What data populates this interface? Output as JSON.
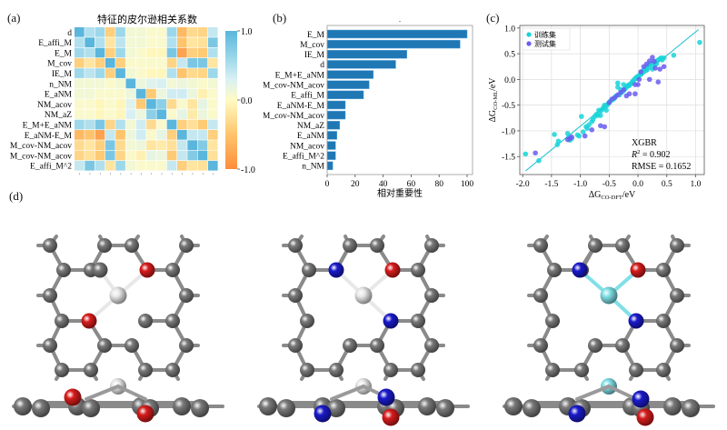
{
  "panels": {
    "a": "(a)",
    "b": "(b)",
    "c": "(c)",
    "d": "(d)"
  },
  "chart_data": [
    {
      "type": "heatmap",
      "title": "特征的皮尔逊相关系数",
      "row_labels": [
        "d",
        "E_affi_M",
        "E_M",
        "M_cov",
        "IE_M",
        "n_NM",
        "E_aNM",
        "NM_acov",
        "NM_aZ",
        "E_M+E_aNM",
        "E_aNM-E_M",
        "M_cov-NM_acov",
        "M_cov-NM_acov",
        "E_affi_M^2"
      ],
      "colorbar": {
        "min": -1.0,
        "max": 1.0,
        "ticks": [
          "1.0",
          "0.0",
          "-1.0"
        ]
      },
      "matrix": [
        [
          1.0,
          0.5,
          0.6,
          -0.4,
          0.6,
          0.1,
          0.1,
          0.05,
          0.05,
          0.6,
          -0.6,
          -0.3,
          -0.35,
          0.4
        ],
        [
          0.5,
          1.0,
          0.5,
          -0.2,
          0.45,
          0.1,
          0.1,
          0.05,
          0.05,
          0.5,
          -0.5,
          -0.2,
          -0.25,
          0.8
        ],
        [
          0.6,
          0.5,
          1.0,
          -0.4,
          0.6,
          0.1,
          0.05,
          -0.05,
          -0.05,
          0.8,
          -0.8,
          -0.4,
          -0.45,
          0.5
        ],
        [
          -0.4,
          -0.2,
          -0.4,
          1.0,
          -0.4,
          0.05,
          0.05,
          0.05,
          0.05,
          -0.35,
          0.4,
          0.8,
          0.8,
          -0.2
        ],
        [
          0.6,
          0.45,
          0.6,
          -0.4,
          1.0,
          0.1,
          0.05,
          -0.05,
          -0.05,
          0.5,
          -0.5,
          -0.3,
          -0.35,
          0.6
        ],
        [
          0.1,
          0.1,
          0.1,
          0.05,
          0.1,
          1.0,
          0.15,
          0.25,
          0.3,
          0.1,
          0.15,
          0.1,
          0.05,
          0.1
        ],
        [
          0.1,
          0.1,
          0.05,
          0.05,
          0.05,
          0.15,
          1.0,
          -0.45,
          0.15,
          0.35,
          0.35,
          0.15,
          -0.1,
          0.05
        ],
        [
          0.05,
          0.05,
          -0.05,
          0.05,
          -0.05,
          0.25,
          -0.45,
          1.0,
          0.7,
          -0.3,
          0.05,
          -0.2,
          0.2,
          0.05
        ],
        [
          0.05,
          0.05,
          -0.05,
          0.05,
          -0.05,
          0.3,
          0.15,
          0.7,
          1.0,
          0.05,
          0.2,
          -0.15,
          0.15,
          0.05
        ],
        [
          0.6,
          0.5,
          0.8,
          -0.35,
          0.5,
          0.1,
          0.35,
          -0.3,
          0.05,
          1.0,
          -0.4,
          -0.25,
          -0.45,
          0.4
        ],
        [
          -0.6,
          -0.5,
          -0.8,
          0.4,
          -0.5,
          0.15,
          0.35,
          0.05,
          0.2,
          -0.4,
          1.0,
          0.4,
          0.4,
          -0.4
        ],
        [
          -0.3,
          -0.2,
          -0.4,
          0.8,
          -0.3,
          0.1,
          0.15,
          -0.2,
          -0.15,
          -0.25,
          0.4,
          1.0,
          0.75,
          -0.2
        ],
        [
          -0.35,
          -0.25,
          -0.45,
          0.8,
          -0.35,
          0.05,
          -0.1,
          0.2,
          0.15,
          -0.45,
          0.4,
          0.75,
          1.0,
          -0.25
        ],
        [
          0.4,
          0.8,
          0.5,
          -0.2,
          0.6,
          0.1,
          0.05,
          0.05,
          0.05,
          0.4,
          -0.4,
          -0.2,
          -0.25,
          1.0
        ]
      ]
    },
    {
      "type": "bar",
      "orientation": "horizontal",
      "categories": [
        "E_M",
        "M_cov",
        "IE_M",
        "d",
        "E_M+E_aNM",
        "M_cov-NM_acov",
        "E_affi_M",
        "E_aNM-E_M",
        "M_cov-NM_acov",
        "NM_aZ",
        "E_aNM",
        "NM_acov",
        "E_affi_M^2",
        "n_NM"
      ],
      "values": [
        100,
        95,
        57,
        49,
        33,
        30,
        26,
        13,
        13,
        9,
        7,
        6,
        6,
        4
      ],
      "xlabel": "相对重要性",
      "xlim": [
        0,
        100
      ],
      "xticks": [
        "0",
        "20",
        "40",
        "60",
        "80",
        "100"
      ],
      "bar_color": "#1f77b4",
      "title_mark": "."
    },
    {
      "type": "scatter",
      "xlabel_main": "ΔG",
      "xlabel_sub": "CO-DFT",
      "xlabel_unit": "/eV",
      "ylabel_main": "ΔG",
      "ylabel_sub": "CO-ML",
      "ylabel_unit": "/eV",
      "xlim": [
        -2.05,
        1.15
      ],
      "ylim": [
        -1.85,
        1.05
      ],
      "xticks": [
        "-2.0",
        "-1.5",
        "-1.0",
        "-0.5",
        "0.0",
        "0.5",
        "1.0"
      ],
      "yticks": [
        "1.0",
        "0.5",
        "0.0",
        "-0.5",
        "-1.0",
        "-1.5"
      ],
      "xtick_values": [
        -2.0,
        -1.5,
        -1.0,
        -0.5,
        0.0,
        0.5,
        1.0
      ],
      "ytick_values": [
        1.0,
        0.5,
        0.0,
        -0.5,
        -1.0,
        -1.5
      ],
      "grid": true,
      "legend_position": "top-left",
      "fit_line": {
        "x": [
          -1.95,
          1.05
        ],
        "y": [
          -1.78,
          0.97
        ],
        "color": "#17becf"
      },
      "annotation": {
        "model": "XGBR",
        "r2_label": "R",
        "r2_sup": "2",
        "r2_value": " = 0.902",
        "rmse": "RMSE = 0.1652"
      },
      "series": [
        {
          "name": "训练集",
          "color": "#17d4d8",
          "x": [
            -1.95,
            -1.72,
            -1.45,
            -1.4,
            -1.38,
            -1.22,
            -1.2,
            -1.18,
            -1.15,
            -1.05,
            -1.02,
            -0.98,
            -0.95,
            -0.9,
            -0.88,
            -0.85,
            -0.8,
            -0.78,
            -0.75,
            -0.72,
            -0.7,
            -0.68,
            -0.65,
            -0.62,
            -0.6,
            -0.58,
            -0.55,
            -0.52,
            -0.5,
            -0.48,
            -0.45,
            -0.42,
            -0.4,
            -0.38,
            -0.35,
            -0.32,
            -0.3,
            -0.28,
            -0.25,
            -0.22,
            -0.2,
            -0.18,
            -0.15,
            -0.12,
            -0.1,
            -0.08,
            -0.05,
            -0.02,
            0.0,
            0.02,
            0.05,
            0.08,
            0.1,
            0.12,
            0.15,
            0.18,
            0.2,
            0.22,
            0.25,
            0.28,
            0.3,
            0.32,
            0.35,
            0.38,
            0.4,
            0.42,
            0.45,
            0.62,
            1.07,
            -0.35,
            -0.25,
            -0.15,
            0.05,
            0.15,
            0.25,
            -0.55,
            -0.65
          ],
          "y": [
            -1.45,
            -1.58,
            -1.07,
            -1.27,
            -1.2,
            -1.05,
            -1.12,
            -1.18,
            -1.15,
            -1.08,
            -1.1,
            -0.72,
            -1.02,
            -0.92,
            -0.95,
            -0.88,
            -0.82,
            -0.78,
            -0.72,
            -0.68,
            -0.7,
            -0.6,
            -0.62,
            -0.58,
            -0.55,
            -0.5,
            -0.52,
            -0.48,
            -0.45,
            -0.42,
            -0.4,
            -0.38,
            -0.35,
            -0.32,
            -0.07,
            -0.3,
            -0.2,
            -0.25,
            -0.22,
            -0.18,
            -0.15,
            -0.12,
            -0.1,
            -0.08,
            -0.05,
            -0.02,
            0.02,
            0.05,
            0.05,
            0.08,
            0.12,
            0.15,
            0.18,
            0.2,
            0.22,
            0.25,
            0.28,
            0.3,
            0.32,
            0.28,
            0.35,
            0.3,
            0.38,
            0.4,
            0.42,
            0.38,
            0.42,
            0.47,
            0.72,
            -0.15,
            -0.1,
            -0.12,
            0.1,
            0.18,
            0.2,
            -0.6,
            -0.7
          ]
        },
        {
          "name": "测试集",
          "color": "#6a5cf0",
          "x": [
            -1.78,
            -1.22,
            -1.18,
            -1.15,
            -0.92,
            -0.8,
            -0.65,
            -0.58,
            -0.5,
            -0.45,
            -0.4,
            -0.35,
            -0.3,
            -0.25,
            -0.2,
            -0.15,
            -0.05,
            0.0,
            0.02,
            0.05,
            0.1,
            0.15,
            0.2,
            0.25,
            0.28,
            0.3,
            0.35,
            0.38,
            0.45,
            -0.05,
            0.2
          ],
          "y": [
            -1.43,
            -1.17,
            -1.15,
            -1.12,
            -1.1,
            -0.98,
            -0.9,
            -0.92,
            -0.45,
            -0.38,
            -0.35,
            -0.3,
            -0.25,
            -0.2,
            -0.32,
            -0.28,
            -0.28,
            -0.1,
            0.0,
            0.15,
            0.25,
            0.3,
            0.36,
            0.43,
            0.35,
            0.22,
            -0.05,
            0.2,
            0.25,
            -0.1,
            0.0
          ]
        }
      ]
    }
  ],
  "structures": {
    "description_labels": []
  }
}
